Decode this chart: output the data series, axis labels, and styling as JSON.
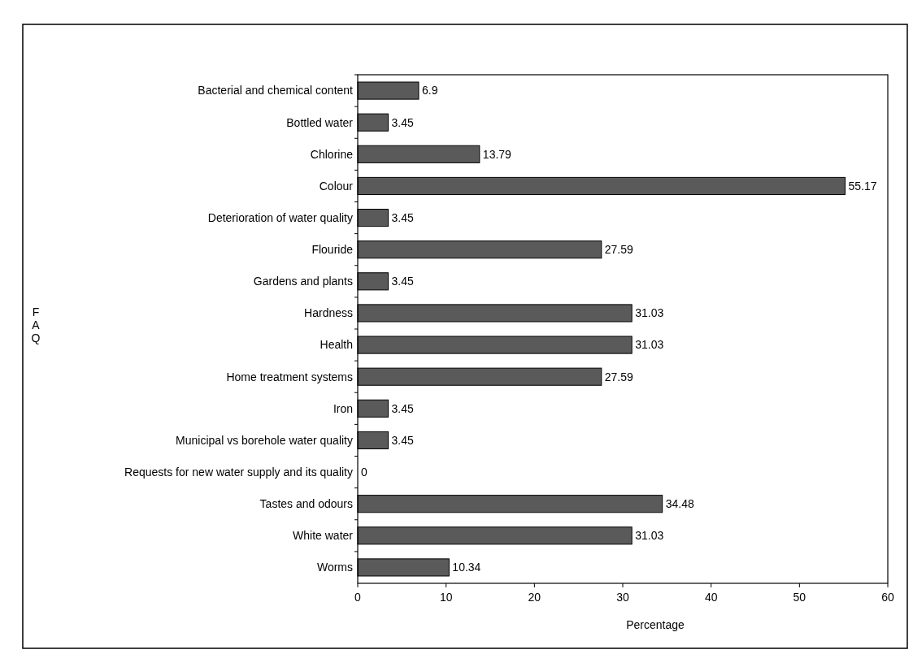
{
  "chart_data": {
    "type": "bar",
    "orientation": "horizontal",
    "categories": [
      "Bacterial and chemical content",
      "Bottled water",
      "Chlorine",
      "Colour",
      "Deterioration of water quality",
      "Flouride",
      "Gardens and plants",
      "Hardness",
      "Health",
      "Home treatment systems",
      "Iron",
      "Municipal vs borehole water quality",
      "Requests for new water supply and its quality",
      "Tastes and odours",
      "White water",
      "Worms"
    ],
    "values": [
      6.9,
      3.45,
      13.79,
      55.17,
      3.45,
      27.59,
      3.45,
      31.03,
      31.03,
      27.59,
      3.45,
      3.45,
      0,
      34.48,
      31.03,
      10.34
    ],
    "color": "#5a5a5a",
    "data_labels": true,
    "xlabel": "Percentage",
    "annotations": [
      "FAQ"
    ],
    "xlim": [
      0,
      60
    ],
    "xticks": [
      0,
      10,
      20,
      30,
      40,
      50,
      60
    ],
    "grid": false
  }
}
